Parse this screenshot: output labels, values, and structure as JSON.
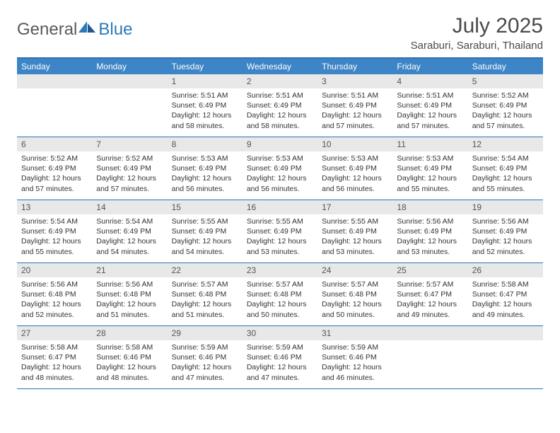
{
  "brand": {
    "part1": "General",
    "part2": "Blue"
  },
  "header": {
    "title": "July 2025",
    "location": "Saraburi, Saraburi, Thailand"
  },
  "colors": {
    "header_bg": "#3d85c6",
    "header_fg": "#ffffff",
    "border": "#2a74b4",
    "daynum_bg": "#e8e8e8",
    "text": "#333333",
    "brand_gray": "#5a5a5a",
    "brand_blue": "#2a7ab8"
  },
  "weekdays": [
    "Sunday",
    "Monday",
    "Tuesday",
    "Wednesday",
    "Thursday",
    "Friday",
    "Saturday"
  ],
  "weeks": [
    [
      null,
      null,
      {
        "n": "1",
        "sr": "5:51 AM",
        "ss": "6:49 PM",
        "dl": "12 hours and 58 minutes."
      },
      {
        "n": "2",
        "sr": "5:51 AM",
        "ss": "6:49 PM",
        "dl": "12 hours and 58 minutes."
      },
      {
        "n": "3",
        "sr": "5:51 AM",
        "ss": "6:49 PM",
        "dl": "12 hours and 57 minutes."
      },
      {
        "n": "4",
        "sr": "5:51 AM",
        "ss": "6:49 PM",
        "dl": "12 hours and 57 minutes."
      },
      {
        "n": "5",
        "sr": "5:52 AM",
        "ss": "6:49 PM",
        "dl": "12 hours and 57 minutes."
      }
    ],
    [
      {
        "n": "6",
        "sr": "5:52 AM",
        "ss": "6:49 PM",
        "dl": "12 hours and 57 minutes."
      },
      {
        "n": "7",
        "sr": "5:52 AM",
        "ss": "6:49 PM",
        "dl": "12 hours and 57 minutes."
      },
      {
        "n": "8",
        "sr": "5:53 AM",
        "ss": "6:49 PM",
        "dl": "12 hours and 56 minutes."
      },
      {
        "n": "9",
        "sr": "5:53 AM",
        "ss": "6:49 PM",
        "dl": "12 hours and 56 minutes."
      },
      {
        "n": "10",
        "sr": "5:53 AM",
        "ss": "6:49 PM",
        "dl": "12 hours and 56 minutes."
      },
      {
        "n": "11",
        "sr": "5:53 AM",
        "ss": "6:49 PM",
        "dl": "12 hours and 55 minutes."
      },
      {
        "n": "12",
        "sr": "5:54 AM",
        "ss": "6:49 PM",
        "dl": "12 hours and 55 minutes."
      }
    ],
    [
      {
        "n": "13",
        "sr": "5:54 AM",
        "ss": "6:49 PM",
        "dl": "12 hours and 55 minutes."
      },
      {
        "n": "14",
        "sr": "5:54 AM",
        "ss": "6:49 PM",
        "dl": "12 hours and 54 minutes."
      },
      {
        "n": "15",
        "sr": "5:55 AM",
        "ss": "6:49 PM",
        "dl": "12 hours and 54 minutes."
      },
      {
        "n": "16",
        "sr": "5:55 AM",
        "ss": "6:49 PM",
        "dl": "12 hours and 53 minutes."
      },
      {
        "n": "17",
        "sr": "5:55 AM",
        "ss": "6:49 PM",
        "dl": "12 hours and 53 minutes."
      },
      {
        "n": "18",
        "sr": "5:56 AM",
        "ss": "6:49 PM",
        "dl": "12 hours and 53 minutes."
      },
      {
        "n": "19",
        "sr": "5:56 AM",
        "ss": "6:49 PM",
        "dl": "12 hours and 52 minutes."
      }
    ],
    [
      {
        "n": "20",
        "sr": "5:56 AM",
        "ss": "6:48 PM",
        "dl": "12 hours and 52 minutes."
      },
      {
        "n": "21",
        "sr": "5:56 AM",
        "ss": "6:48 PM",
        "dl": "12 hours and 51 minutes."
      },
      {
        "n": "22",
        "sr": "5:57 AM",
        "ss": "6:48 PM",
        "dl": "12 hours and 51 minutes."
      },
      {
        "n": "23",
        "sr": "5:57 AM",
        "ss": "6:48 PM",
        "dl": "12 hours and 50 minutes."
      },
      {
        "n": "24",
        "sr": "5:57 AM",
        "ss": "6:48 PM",
        "dl": "12 hours and 50 minutes."
      },
      {
        "n": "25",
        "sr": "5:57 AM",
        "ss": "6:47 PM",
        "dl": "12 hours and 49 minutes."
      },
      {
        "n": "26",
        "sr": "5:58 AM",
        "ss": "6:47 PM",
        "dl": "12 hours and 49 minutes."
      }
    ],
    [
      {
        "n": "27",
        "sr": "5:58 AM",
        "ss": "6:47 PM",
        "dl": "12 hours and 48 minutes."
      },
      {
        "n": "28",
        "sr": "5:58 AM",
        "ss": "6:46 PM",
        "dl": "12 hours and 48 minutes."
      },
      {
        "n": "29",
        "sr": "5:59 AM",
        "ss": "6:46 PM",
        "dl": "12 hours and 47 minutes."
      },
      {
        "n": "30",
        "sr": "5:59 AM",
        "ss": "6:46 PM",
        "dl": "12 hours and 47 minutes."
      },
      {
        "n": "31",
        "sr": "5:59 AM",
        "ss": "6:46 PM",
        "dl": "12 hours and 46 minutes."
      },
      null,
      null
    ]
  ],
  "labels": {
    "sunrise": "Sunrise:",
    "sunset": "Sunset:",
    "daylight": "Daylight:"
  }
}
